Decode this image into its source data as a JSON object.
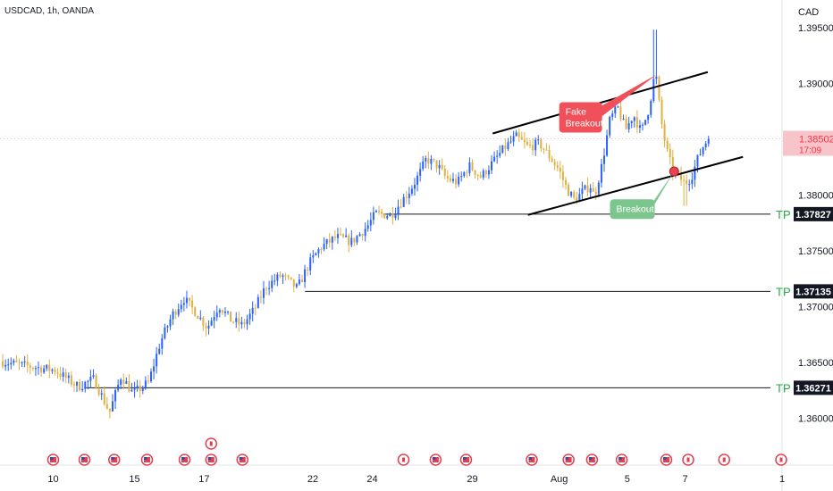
{
  "header": {
    "symbol_label": "USDCAD, 1h, OANDA",
    "currency": "CAD"
  },
  "chart_data": {
    "type": "candlestick",
    "ylim": [
      1.3565,
      1.3965
    ],
    "y_ticks": [
      "1.39500",
      "1.39000",
      "1.38500",
      "1.38000",
      "1.37500",
      "1.37000",
      "1.36500",
      "1.36000"
    ],
    "x_ticks": [
      {
        "label": "10",
        "pos": 0.068
      },
      {
        "label": "15",
        "pos": 0.172
      },
      {
        "label": "17",
        "pos": 0.261
      },
      {
        "label": "22",
        "pos": 0.4
      },
      {
        "label": "24",
        "pos": 0.476
      },
      {
        "label": "29",
        "pos": 0.604
      },
      {
        "label": "Aug",
        "pos": 0.715
      },
      {
        "label": "5",
        "pos": 0.802
      },
      {
        "label": "7",
        "pos": 0.876
      },
      {
        "label": "1",
        "pos": 1.0
      }
    ],
    "last_price": {
      "value": 1.38502,
      "label": "1.38502",
      "countdown": "17:09"
    },
    "levels": [
      {
        "value": 1.37827,
        "label": "1.37827",
        "tag": "TP",
        "start": 0.49
      },
      {
        "value": 1.37135,
        "label": "1.37135",
        "tag": "TP",
        "start": 0.39
      },
      {
        "value": 1.36271,
        "label": "1.36271",
        "tag": "TP",
        "start": 0.11
      }
    ],
    "price_path": [
      [
        0.0,
        1.3651
      ],
      [
        0.03,
        1.3647
      ],
      [
        0.07,
        1.3643
      ],
      [
        0.1,
        1.3628
      ],
      [
        0.12,
        1.3635
      ],
      [
        0.14,
        1.3605
      ],
      [
        0.155,
        1.3638
      ],
      [
        0.17,
        1.3622
      ],
      [
        0.19,
        1.3632
      ],
      [
        0.205,
        1.3668
      ],
      [
        0.22,
        1.3692
      ],
      [
        0.235,
        1.3707
      ],
      [
        0.25,
        1.3695
      ],
      [
        0.265,
        1.3681
      ],
      [
        0.28,
        1.3701
      ],
      [
        0.295,
        1.3688
      ],
      [
        0.31,
        1.3683
      ],
      [
        0.325,
        1.3697
      ],
      [
        0.34,
        1.3718
      ],
      [
        0.36,
        1.3728
      ],
      [
        0.38,
        1.3716
      ],
      [
        0.395,
        1.3738
      ],
      [
        0.41,
        1.3753
      ],
      [
        0.43,
        1.3762
      ],
      [
        0.45,
        1.3758
      ],
      [
        0.47,
        1.3772
      ],
      [
        0.48,
        1.3783
      ],
      [
        0.5,
        1.3782
      ],
      [
        0.51,
        1.3791
      ],
      [
        0.525,
        1.3805
      ],
      [
        0.535,
        1.3817
      ],
      [
        0.545,
        1.3832
      ],
      [
        0.56,
        1.3826
      ],
      [
        0.57,
        1.3815
      ],
      [
        0.585,
        1.3811
      ],
      [
        0.6,
        1.3826
      ],
      [
        0.615,
        1.3816
      ],
      [
        0.63,
        1.3829
      ],
      [
        0.645,
        1.3842
      ],
      [
        0.66,
        1.3852
      ],
      [
        0.675,
        1.3843
      ],
      [
        0.69,
        1.3846
      ],
      [
        0.705,
        1.3832
      ],
      [
        0.715,
        1.3822
      ],
      [
        0.725,
        1.3805
      ],
      [
        0.735,
        1.3795
      ],
      [
        0.745,
        1.3803
      ],
      [
        0.755,
        1.3808
      ],
      [
        0.76,
        1.3798
      ],
      [
        0.77,
        1.3828
      ],
      [
        0.78,
        1.3868
      ],
      [
        0.79,
        1.3878
      ],
      [
        0.8,
        1.3858
      ],
      [
        0.81,
        1.3872
      ],
      [
        0.82,
        1.3856
      ],
      [
        0.83,
        1.3878
      ],
      [
        0.838,
        1.3912
      ],
      [
        0.845,
        1.3868
      ],
      [
        0.852,
        1.3841
      ],
      [
        0.86,
        1.3822
      ],
      [
        0.868,
        1.3816
      ],
      [
        0.876,
        1.381
      ],
      [
        0.884,
        1.3816
      ],
      [
        0.892,
        1.3832
      ],
      [
        0.9,
        1.3845
      ],
      [
        0.906,
        1.38502
      ]
    ],
    "wick_high": [
      0.838,
      1.3948
    ],
    "wick_low": [
      0.876,
      1.379
    ],
    "channel_lines": [
      {
        "x1": 0.63,
        "y1": 1.3855,
        "x2": 0.905,
        "y2": 1.391
      },
      {
        "x1": 0.675,
        "y1": 1.3782,
        "x2": 0.95,
        "y2": 1.3834
      }
    ],
    "annotations": [
      {
        "text": [
          "Fake",
          "Breakout"
        ],
        "style": "red",
        "x": 0.715,
        "y": 1.3883,
        "pointer": [
          0.84,
          1.3908
        ]
      },
      {
        "text": [
          "Breakout"
        ],
        "style": "green",
        "x": 0.78,
        "y": 1.3796,
        "pointer": [
          0.862,
          1.3821
        ]
      }
    ],
    "event_markers": [
      {
        "pos": 0.068,
        "flag": "us"
      },
      {
        "pos": 0.108,
        "flag": "us"
      },
      {
        "pos": 0.146,
        "flag": "us"
      },
      {
        "pos": 0.188,
        "flag": "us"
      },
      {
        "pos": 0.236,
        "flag": "us"
      },
      {
        "pos": 0.27,
        "flag": "us"
      },
      {
        "pos": 0.31,
        "flag": "us"
      },
      {
        "pos": 0.516,
        "flag": "ca"
      },
      {
        "pos": 0.557,
        "flag": "us"
      },
      {
        "pos": 0.596,
        "flag": "us"
      },
      {
        "pos": 0.68,
        "flag": "us"
      },
      {
        "pos": 0.727,
        "flag": "us"
      },
      {
        "pos": 0.757,
        "flag": "us"
      },
      {
        "pos": 0.795,
        "flag": "us"
      },
      {
        "pos": 0.852,
        "flag": "us"
      },
      {
        "pos": 0.88,
        "flag": "ca"
      },
      {
        "pos": 0.926,
        "flag": "ca"
      },
      {
        "pos": 1.0,
        "flag": "ca"
      }
    ],
    "event_markers_upper": [
      {
        "pos": 0.27,
        "flag": "ca"
      }
    ],
    "colors": {
      "up": "#2962ff",
      "down": "#e0b040",
      "last_price": "#f23645",
      "tp": "#26a647",
      "red_note": "#f0505a",
      "green_note": "#7cc68e"
    }
  }
}
